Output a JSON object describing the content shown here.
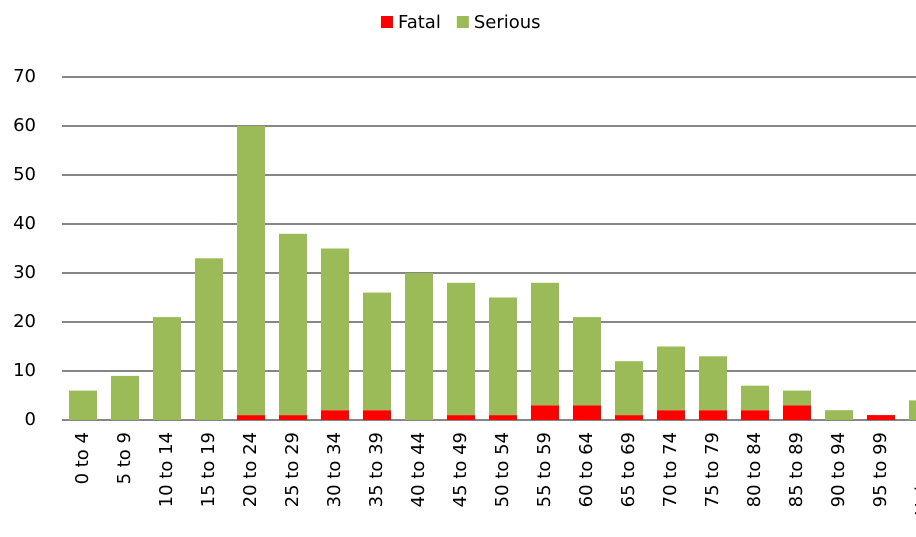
{
  "chart_data": {
    "type": "stacked-bar",
    "categories": [
      "0 to 4",
      "5 to 9",
      "10 to 14",
      "15 to 19",
      "20 to 24",
      "25 to 29",
      "30 to 34",
      "35 to 39",
      "40 to 44",
      "45 to 49",
      "50 to 54",
      "55 to 59",
      "60 to 64",
      "65 to 69",
      "70 to 74",
      "75 to 79",
      "80 to 84",
      "85 to 89",
      "90 to 94",
      "95 to 99",
      "Unknown"
    ],
    "series": [
      {
        "name": "Fatal",
        "color": "#ff0000",
        "values": [
          0,
          0,
          0,
          0,
          1,
          1,
          2,
          2,
          0,
          1,
          1,
          3,
          3,
          1,
          2,
          2,
          2,
          3,
          0,
          1,
          0
        ]
      },
      {
        "name": "Serious",
        "color": "#9bbb59",
        "values": [
          6,
          9,
          21,
          33,
          59,
          37,
          33,
          24,
          30,
          27,
          24,
          25,
          18,
          11,
          13,
          11,
          5,
          3,
          2,
          0,
          4
        ]
      }
    ],
    "ylim": [
      0,
      70
    ],
    "yticks": [
      0,
      10,
      20,
      30,
      40,
      50,
      60,
      70
    ],
    "grid": true,
    "legend": "top"
  }
}
